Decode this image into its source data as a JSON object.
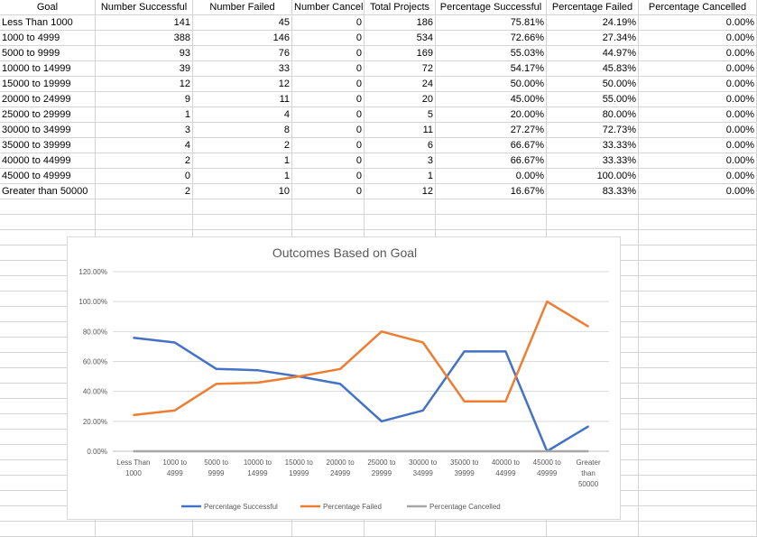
{
  "table": {
    "headers": [
      "Goal",
      "Number Successful",
      "Number Failed",
      "Number Cancelled",
      "Total Projects",
      "Percentage Successful",
      "Percentage Failed",
      "Percentage Cancelled"
    ],
    "rows": [
      [
        "Less Than 1000",
        "141",
        "45",
        "0",
        "186",
        "75.81%",
        "24.19%",
        "0.00%"
      ],
      [
        "1000 to 4999",
        "388",
        "146",
        "0",
        "534",
        "72.66%",
        "27.34%",
        "0.00%"
      ],
      [
        "5000 to 9999",
        "93",
        "76",
        "0",
        "169",
        "55.03%",
        "44.97%",
        "0.00%"
      ],
      [
        "10000 to 14999",
        "39",
        "33",
        "0",
        "72",
        "54.17%",
        "45.83%",
        "0.00%"
      ],
      [
        "15000 to 19999",
        "12",
        "12",
        "0",
        "24",
        "50.00%",
        "50.00%",
        "0.00%"
      ],
      [
        "20000 to 24999",
        "9",
        "11",
        "0",
        "20",
        "45.00%",
        "55.00%",
        "0.00%"
      ],
      [
        "25000 to 29999",
        "1",
        "4",
        "0",
        "5",
        "20.00%",
        "80.00%",
        "0.00%"
      ],
      [
        "30000 to 34999",
        "3",
        "8",
        "0",
        "11",
        "27.27%",
        "72.73%",
        "0.00%"
      ],
      [
        "35000 to 39999",
        "4",
        "2",
        "0",
        "6",
        "66.67%",
        "33.33%",
        "0.00%"
      ],
      [
        "40000 to 44999",
        "2",
        "1",
        "0",
        "3",
        "66.67%",
        "33.33%",
        "0.00%"
      ],
      [
        "45000 to 49999",
        "0",
        "1",
        "0",
        "1",
        "0.00%",
        "100.00%",
        "0.00%"
      ],
      [
        "Greater than 50000",
        "2",
        "10",
        "0",
        "12",
        "16.67%",
        "83.33%",
        "0.00%"
      ]
    ]
  },
  "chart_data": {
    "type": "line",
    "title": "Outcomes Based on Goal",
    "categories": [
      "Less Than 1000",
      "1000 to 4999",
      "5000 to 9999",
      "10000 to 14999",
      "15000 to 19999",
      "20000 to 24999",
      "25000 to 29999",
      "30000 to 34999",
      "35000 to 39999",
      "40000 to 44999",
      "45000 to 49999",
      "Greater than 50000"
    ],
    "category_label_lines": [
      [
        "Less Than",
        "1000"
      ],
      [
        "1000 to",
        "4999"
      ],
      [
        "5000 to",
        "9999"
      ],
      [
        "10000 to",
        "14999"
      ],
      [
        "15000 to",
        "19999"
      ],
      [
        "20000 to",
        "24999"
      ],
      [
        "25000 to",
        "29999"
      ],
      [
        "30000 to",
        "34999"
      ],
      [
        "35000 to",
        "39999"
      ],
      [
        "40000 to",
        "44999"
      ],
      [
        "45000 to",
        "49999"
      ],
      [
        "Greater",
        "than",
        "50000"
      ]
    ],
    "yticks": [
      "0.00%",
      "20.00%",
      "40.00%",
      "60.00%",
      "80.00%",
      "100.00%",
      "120.00%"
    ],
    "ylim": [
      0,
      1.2
    ],
    "grid": true,
    "legend": "bottom",
    "series": [
      {
        "name": "Percentage Successful",
        "color": "#4472c4",
        "values": [
          0.7581,
          0.7266,
          0.5503,
          0.5417,
          0.5,
          0.45,
          0.2,
          0.2727,
          0.6667,
          0.6667,
          0,
          0.1667
        ]
      },
      {
        "name": "Percentage Failed",
        "color": "#ed7d31",
        "values": [
          0.2419,
          0.2734,
          0.4497,
          0.4583,
          0.5,
          0.55,
          0.8,
          0.7273,
          0.3333,
          0.3333,
          1,
          0.8333
        ]
      },
      {
        "name": "Percentage Cancelled",
        "color": "#a5a5a5",
        "values": [
          0,
          0,
          0,
          0,
          0,
          0,
          0,
          0,
          0,
          0,
          0,
          0
        ]
      }
    ]
  }
}
